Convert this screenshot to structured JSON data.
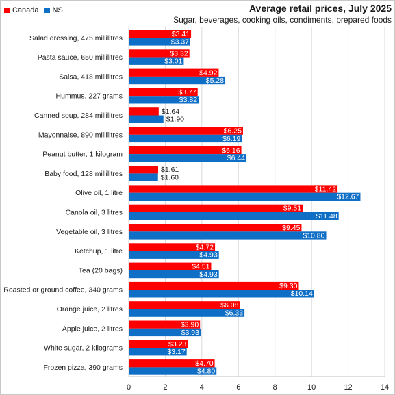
{
  "chart_data": {
    "type": "bar",
    "orientation": "horizontal",
    "title": "Average retail prices, July 2025",
    "subtitle": "Sugar, beverages,  cooking oils, condiments, prepared foods",
    "xlim": [
      0,
      14
    ],
    "xticks": [
      0,
      2,
      4,
      6,
      8,
      10,
      12,
      14
    ],
    "grid": "vertical",
    "legend_position": "top-left",
    "categories": [
      "Salad dressing, 475 millilitres",
      "Pasta sauce, 650 millilitres",
      "Salsa, 418 millilitres",
      "Hummus, 227 grams",
      "Canned soup, 284 millilitres",
      "Mayonnaise, 890 millilitres",
      "Peanut butter, 1 kilogram",
      "Baby food, 128 millilitres",
      "Olive oil, 1 litre",
      "Canola oil, 3 litres",
      "Vegetable oil, 3 litres",
      "Ketchup, 1 litre",
      "Tea (20 bags)",
      "Roasted or ground coffee, 340 grams",
      "Orange juice, 2 litres",
      "Apple juice, 2 litres",
      "White sugar, 2 kilograms",
      "Frozen pizza, 390 grams"
    ],
    "series": [
      {
        "name": "Canada",
        "color": "#ff0000",
        "values": [
          3.41,
          3.32,
          4.92,
          3.77,
          1.64,
          6.25,
          6.16,
          1.61,
          11.42,
          9.51,
          9.45,
          4.72,
          4.51,
          9.3,
          6.08,
          3.9,
          3.23,
          4.7
        ],
        "labels": [
          "$3.41",
          "$3.32",
          "$4.92",
          "$3.77",
          "$1.64",
          "$6.25",
          "$6.16",
          "$1.61",
          "$11.42",
          "$9.51",
          "$9.45",
          "$4.72",
          "$4.51",
          "$9.30",
          "$6.08",
          "$3.90",
          "$3.23",
          "$4.70"
        ]
      },
      {
        "name": "NS",
        "color": "#0f6fc6",
        "values": [
          3.37,
          3.01,
          5.28,
          3.82,
          1.9,
          6.19,
          6.44,
          1.6,
          12.67,
          11.48,
          10.8,
          4.93,
          4.93,
          10.14,
          6.33,
          3.93,
          3.17,
          4.8
        ],
        "labels": [
          "$3.37",
          "$3.01",
          "$5.28",
          "$3.82",
          "$1.90",
          "$6.19",
          "$6.44",
          "$1.60",
          "$12.67",
          "$11.48",
          "$10.80",
          "$4.93",
          "$4.93",
          "$10.14",
          "$6.33",
          "$3.93",
          "$3.17",
          "$4.80"
        ]
      }
    ]
  }
}
